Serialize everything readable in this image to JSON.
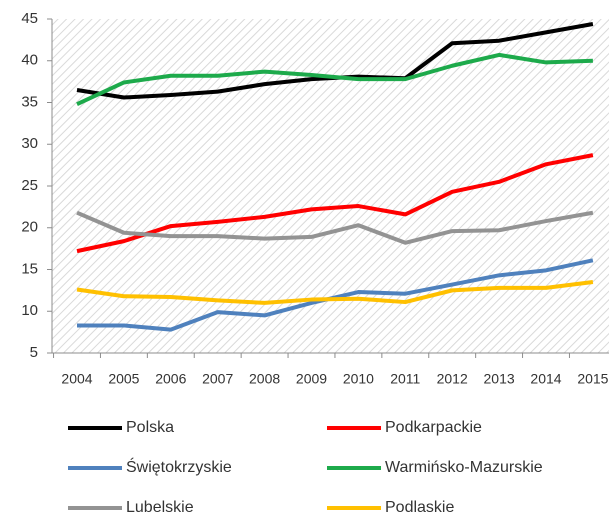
{
  "chart_data": {
    "type": "line",
    "categories": [
      "2004",
      "2005",
      "2006",
      "2007",
      "2008",
      "2009",
      "2010",
      "2011",
      "2012",
      "2013",
      "2014",
      "2015"
    ],
    "series": [
      {
        "name": "Polska",
        "color": "#000000",
        "values": [
          36.5,
          35.6,
          35.9,
          36.3,
          37.2,
          37.8,
          38.1,
          37.9,
          42.1,
          42.4,
          43.4,
          44.4
        ]
      },
      {
        "name": "Podkarpackie",
        "color": "#ff0000",
        "values": [
          17.2,
          18.4,
          20.2,
          20.7,
          21.3,
          22.2,
          22.6,
          21.6,
          24.3,
          25.5,
          27.6,
          28.7
        ]
      },
      {
        "name": "Świętokrzyskie",
        "color": "#4f81bd",
        "values": [
          8.3,
          8.3,
          7.8,
          9.9,
          9.5,
          11.0,
          12.3,
          12.1,
          13.2,
          14.3,
          14.9,
          16.1
        ]
      },
      {
        "name": "Warmińsko-Mazurskie",
        "color": "#1daa4b",
        "values": [
          34.8,
          37.4,
          38.2,
          38.2,
          38.7,
          38.3,
          37.8,
          37.8,
          39.4,
          40.7,
          39.8,
          40.0
        ]
      },
      {
        "name": "Lubelskie",
        "color": "#939393",
        "values": [
          21.8,
          19.4,
          19.0,
          19.0,
          18.7,
          18.9,
          20.3,
          18.2,
          19.6,
          19.7,
          20.8,
          21.8
        ]
      },
      {
        "name": "Podlaskie",
        "color": "#ffc000",
        "values": [
          12.6,
          11.8,
          11.7,
          11.3,
          11.0,
          11.4,
          11.5,
          11.1,
          12.5,
          12.8,
          12.8,
          13.5
        ]
      }
    ],
    "ylim": [
      5,
      45
    ],
    "yticks": [
      5,
      10,
      15,
      20,
      25,
      30,
      35,
      40,
      45
    ]
  }
}
